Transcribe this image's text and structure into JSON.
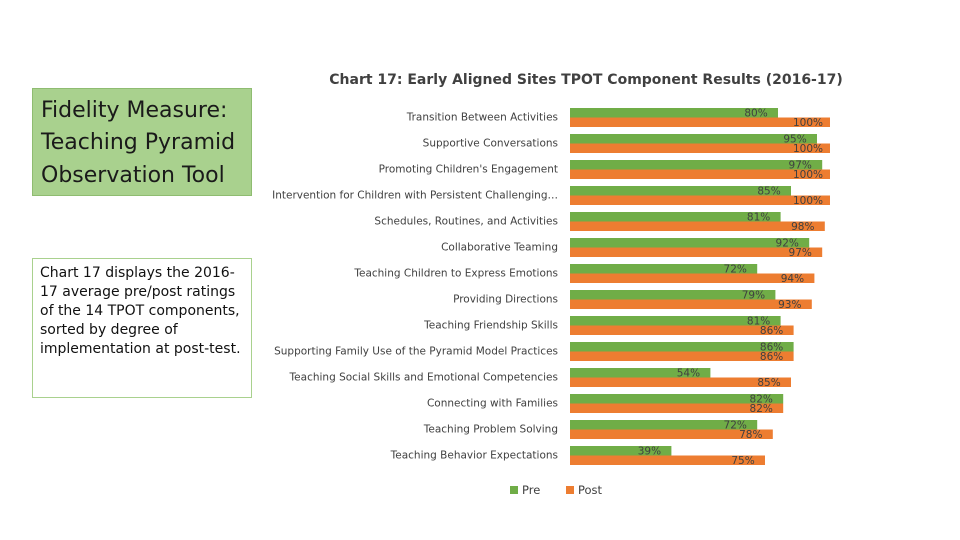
{
  "sidebar": {
    "title": "Fidelity Measure:\nTeaching Pyramid\nObservation Tool",
    "description": "Chart 17 displays the 2016-17 average pre/post ratings of the 14 TPOT components, sorted by degree of implementation at post-test."
  },
  "colors": {
    "pre": "#70ad47",
    "post": "#ed7d31"
  },
  "chart_data": {
    "type": "bar",
    "orientation": "horizontal",
    "title": "Chart 17: Early Aligned Sites TPOT Component Results (2016-17)",
    "categories": [
      "Transition Between Activities",
      "Supportive Conversations",
      "Promoting Children's Engagement",
      "Intervention for Children with Persistent Challenging…",
      "Schedules, Routines, and Activities",
      "Collaborative Teaming",
      "Teaching Children to Express Emotions",
      "Providing Directions",
      "Teaching Friendship Skills",
      "Supporting Family Use of the Pyramid Model Practices",
      "Teaching Social Skills and Emotional Competencies",
      "Connecting with Families",
      "Teaching Problem Solving",
      "Teaching Behavior Expectations"
    ],
    "series": [
      {
        "name": "Pre",
        "values": [
          80,
          95,
          97,
          85,
          81,
          92,
          72,
          79,
          81,
          86,
          54,
          82,
          72,
          39
        ]
      },
      {
        "name": "Post",
        "values": [
          100,
          100,
          100,
          100,
          98,
          97,
          94,
          93,
          86,
          86,
          85,
          82,
          78,
          75
        ]
      }
    ],
    "value_suffix": "%",
    "xlim": [
      0,
      100
    ],
    "grid": false,
    "legend_position": "bottom"
  }
}
